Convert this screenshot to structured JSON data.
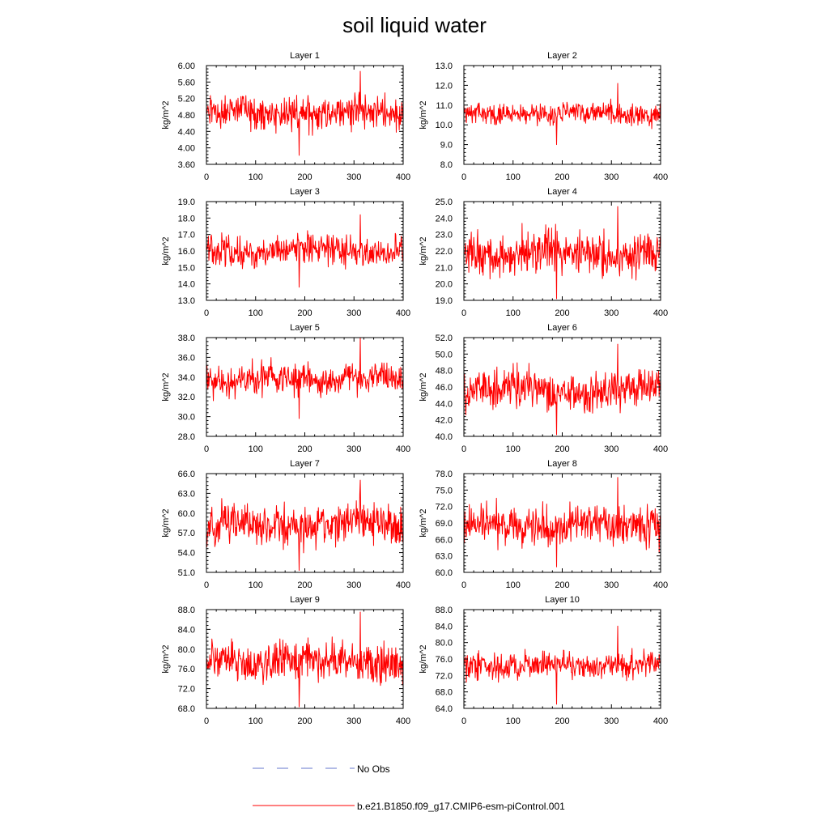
{
  "chart_data": {
    "type": "line",
    "title": "soil liquid water",
    "xlim": [
      0,
      400
    ],
    "x_ticks": [
      0,
      100,
      200,
      300,
      400
    ],
    "panels": [
      {
        "title": "Layer 1",
        "ylabel": "kg/m^2",
        "ylim": [
          3.6,
          6.0
        ],
        "yticks": [
          "3.60",
          "4.00",
          "4.40",
          "4.80",
          "5.20",
          "5.60",
          "6.00"
        ],
        "mean": 4.85,
        "amp": 0.38,
        "series_min": 3.82,
        "series_max": 5.86
      },
      {
        "title": "Layer 2",
        "ylabel": "kg/m^2",
        "ylim": [
          8.0,
          13.0
        ],
        "yticks": [
          "8.0",
          "9.0",
          "10.0",
          "11.0",
          "12.0",
          "13.0"
        ],
        "mean": 10.55,
        "amp": 0.5,
        "series_min": 9.0,
        "series_max": 12.1
      },
      {
        "title": "Layer 3",
        "ylabel": "kg/m^2",
        "ylim": [
          13.0,
          19.0
        ],
        "yticks": [
          "13.0",
          "14.0",
          "15.0",
          "16.0",
          "17.0",
          "18.0",
          "19.0"
        ],
        "mean": 16.0,
        "amp": 0.85,
        "series_min": 13.8,
        "series_max": 18.2
      },
      {
        "title": "Layer 4",
        "ylabel": "kg/m^2",
        "ylim": [
          19.0,
          25.0
        ],
        "yticks": [
          "19.0",
          "20.0",
          "21.0",
          "22.0",
          "23.0",
          "24.0",
          "25.0"
        ],
        "mean": 21.9,
        "amp": 1.2,
        "series_min": 19.1,
        "series_max": 24.7
      },
      {
        "title": "Layer 5",
        "ylabel": "kg/m^2",
        "ylim": [
          28.0,
          38.0
        ],
        "yticks": [
          "28.0",
          "30.0",
          "32.0",
          "34.0",
          "36.0",
          "38.0"
        ],
        "mean": 33.8,
        "amp": 1.5,
        "series_min": 29.8,
        "series_max": 38.0
      },
      {
        "title": "Layer 6",
        "ylabel": "kg/m^2",
        "ylim": [
          40.0,
          52.0
        ],
        "yticks": [
          "40.0",
          "42.0",
          "44.0",
          "46.0",
          "48.0",
          "50.0",
          "52.0"
        ],
        "mean": 45.6,
        "amp": 2.2,
        "series_min": 40.2,
        "series_max": 51.2
      },
      {
        "title": "Layer 7",
        "ylabel": "kg/m^2",
        "ylim": [
          51.0,
          66.0
        ],
        "yticks": [
          "51.0",
          "54.0",
          "57.0",
          "60.0",
          "63.0",
          "66.0"
        ],
        "mean": 58.2,
        "amp": 2.9,
        "series_min": 51.3,
        "series_max": 65.0
      },
      {
        "title": "Layer 8",
        "ylabel": "kg/m^2",
        "ylim": [
          60.0,
          78.0
        ],
        "yticks": [
          "60.0",
          "63.0",
          "66.0",
          "69.0",
          "72.0",
          "75.0",
          "78.0"
        ],
        "mean": 68.6,
        "amp": 3.3,
        "series_min": 61.0,
        "series_max": 77.3
      },
      {
        "title": "Layer 9",
        "ylabel": "kg/m^2",
        "ylim": [
          68.0,
          88.0
        ],
        "yticks": [
          "68.0",
          "72.0",
          "76.0",
          "80.0",
          "84.0",
          "88.0"
        ],
        "mean": 77.5,
        "amp": 3.7,
        "series_min": 68.3,
        "series_max": 87.5
      },
      {
        "title": "Layer 10",
        "ylabel": "kg/m^2",
        "ylim": [
          64.0,
          88.0
        ],
        "yticks": [
          "64.0",
          "68.0",
          "72.0",
          "76.0",
          "80.0",
          "84.0",
          "88.0"
        ],
        "mean": 74.5,
        "amp": 3.1,
        "series_min": 65.0,
        "series_max": 84.0
      }
    ],
    "legend": [
      {
        "label": "No Obs",
        "color": "#6677cc",
        "style": "dashed"
      },
      {
        "label": "b.e21.B1850.f09_g17.CMIP6-esm-piControl.001",
        "color": "#ff0000",
        "style": "solid"
      }
    ],
    "series_color": "#ff0000",
    "n_points": 400
  }
}
